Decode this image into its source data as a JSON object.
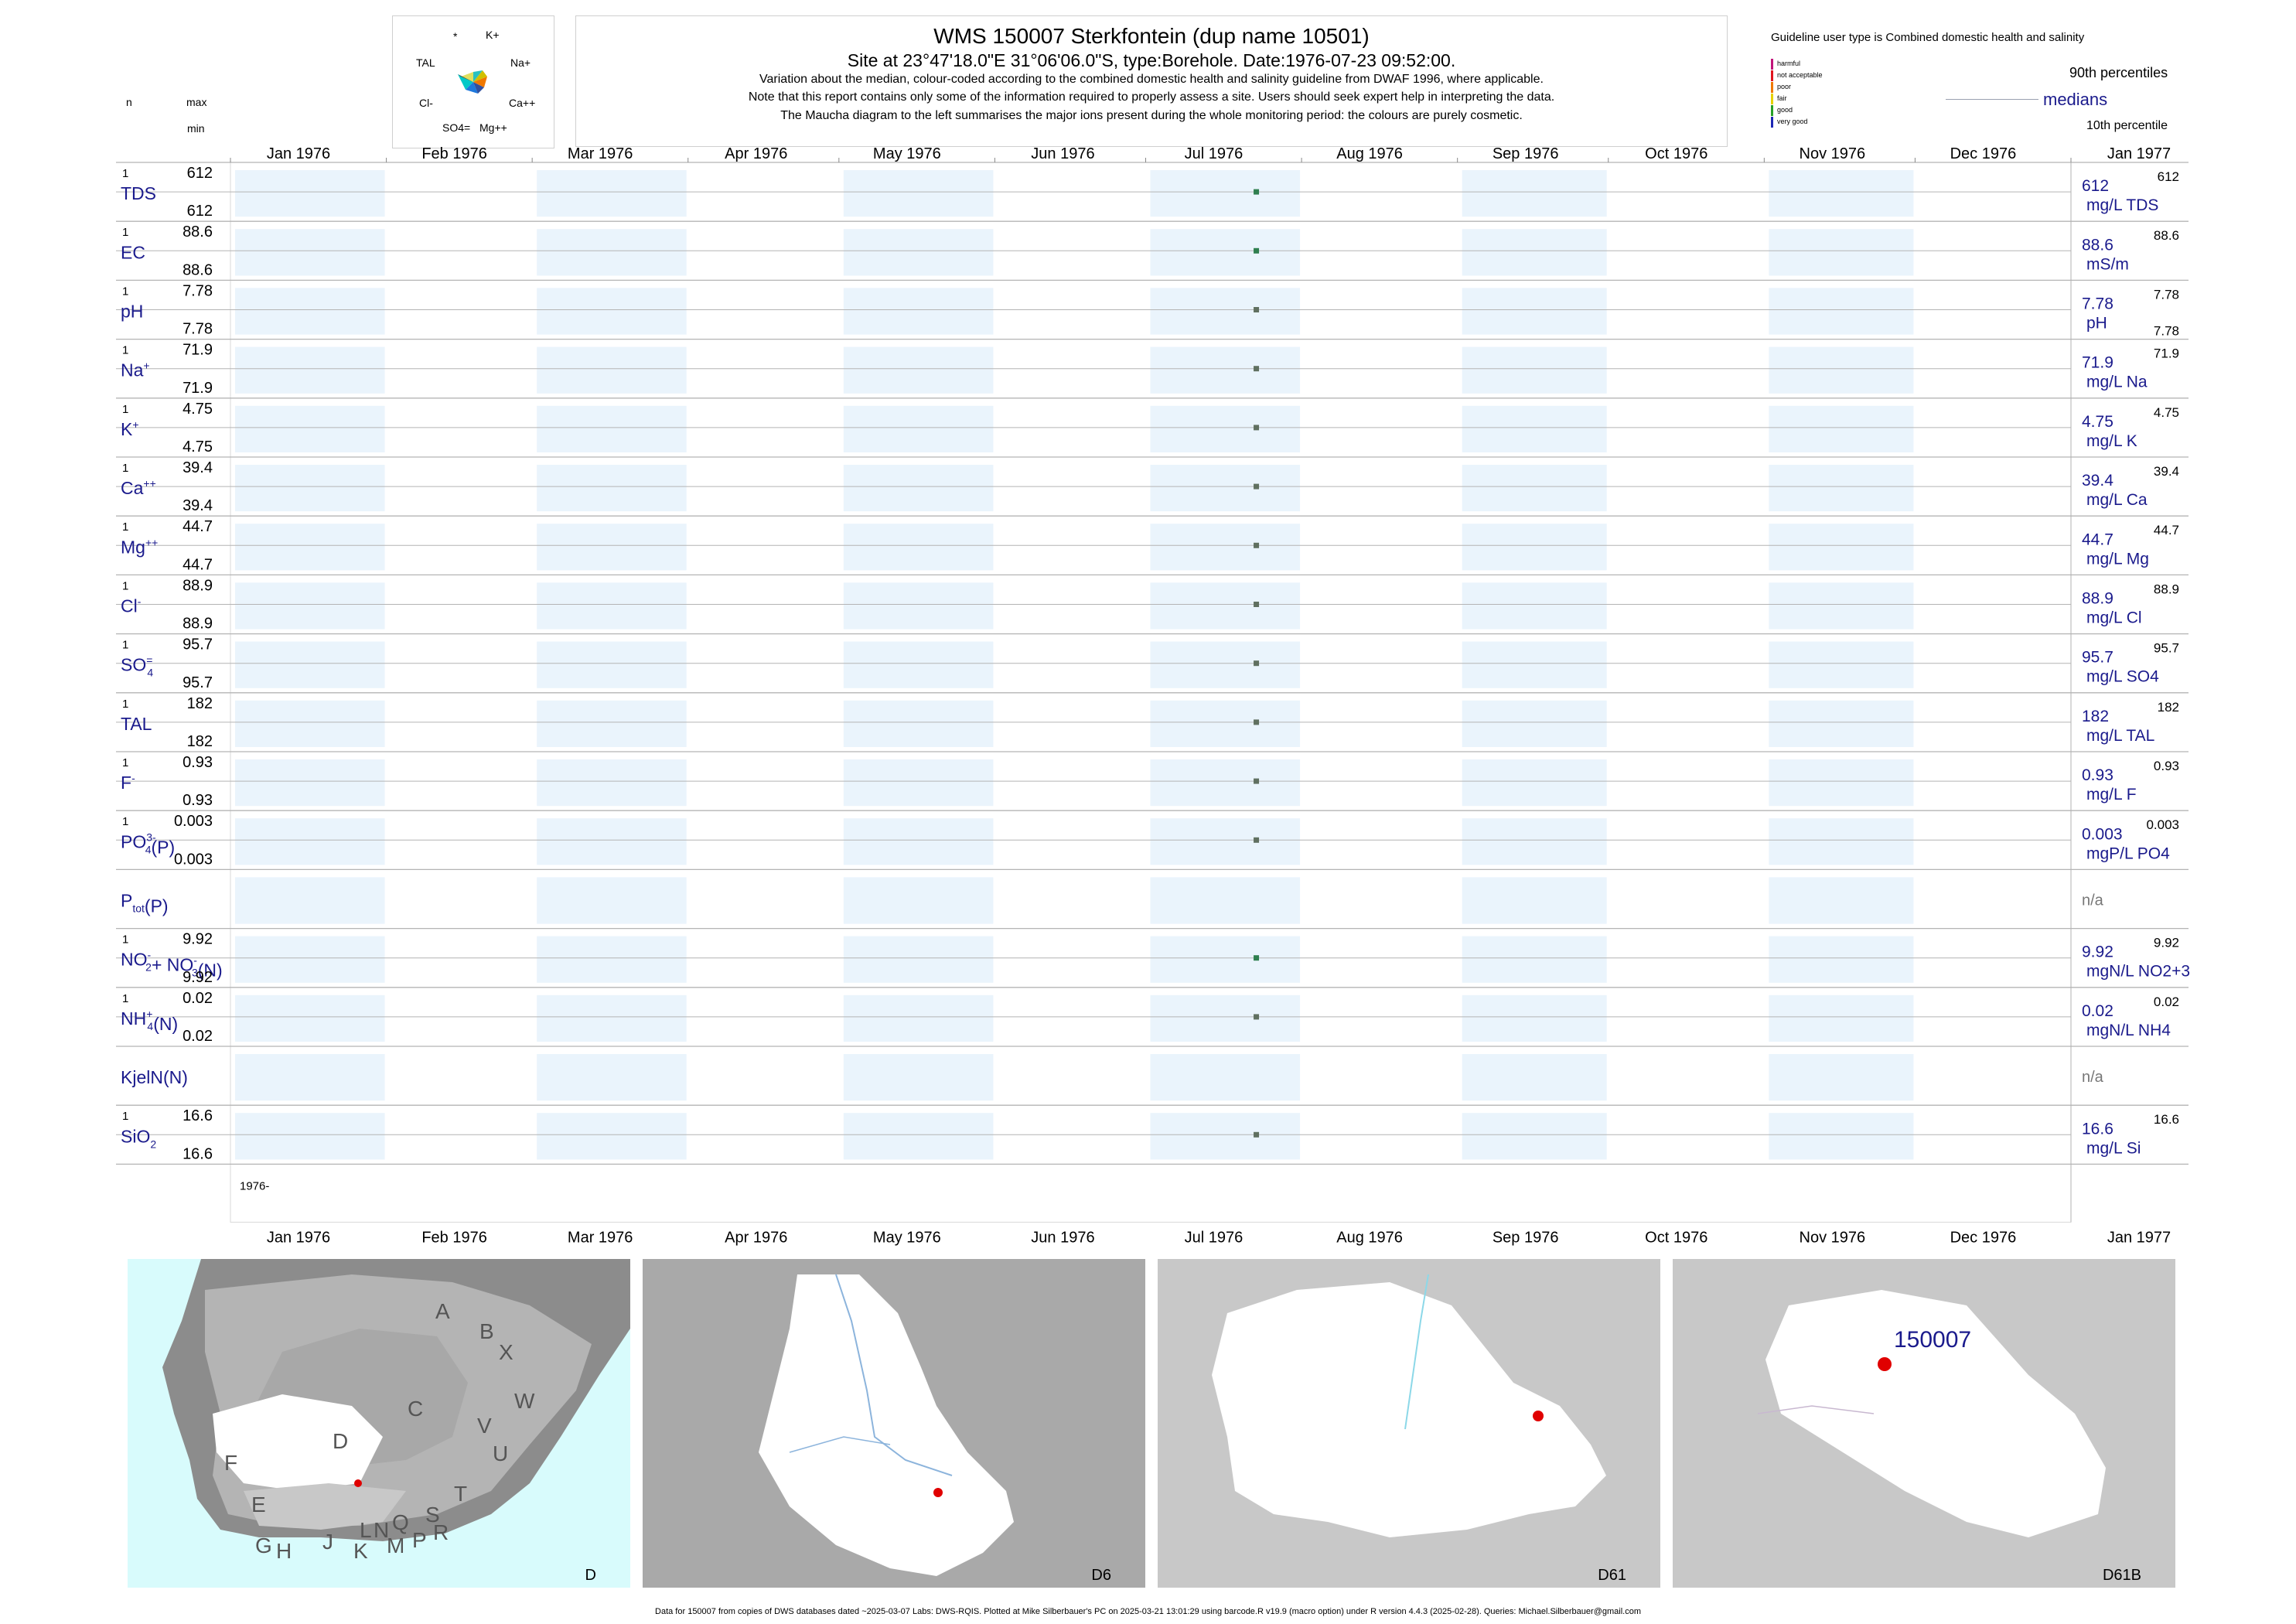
{
  "header": {
    "title": "WMS 150007  Sterkfontein (dup name 10501)",
    "subtitle": "Site at 23°47'18.0\"E 31°06'06.0\"S, type:Borehole. Date:1976-07-23 09:52:00.",
    "note1": "Variation about the median,  colour-coded according to the combined domestic health and salinity guideline from DWAF 1996, where applicable.",
    "note2": "Note that this report contains only some of the information required to properly assess a site. Users should seek expert help in interpreting the data.",
    "note3": "The Maucha diagram to the left summarises the major ions present during the whole monitoring period: the colours are purely cosmetic."
  },
  "column_heads": {
    "n": "n",
    "max": "max",
    "min": "min"
  },
  "maucha": {
    "labels": [
      "*",
      "K+",
      "Na+",
      "Ca++",
      "Mg++",
      "SO4=",
      "Cl-",
      "TAL"
    ]
  },
  "guideline": {
    "title": "Guideline user type is Combined domestic health and salinity",
    "classes": [
      {
        "label": "harmful",
        "color": "#c0147a"
      },
      {
        "label": "not acceptable",
        "color": "#e0141e"
      },
      {
        "label": "poor",
        "color": "#f07800"
      },
      {
        "label": "fair",
        "color": "#e6d200"
      },
      {
        "label": "good",
        "color": "#28a028"
      },
      {
        "label": "very good",
        "color": "#1e28b4"
      }
    ],
    "p90": "90th percentiles",
    "medians": "medians",
    "p10": "10th percentile"
  },
  "chart_data": {
    "type": "scatter",
    "x_ticks": [
      "Jan 1976",
      "Feb 1976",
      "Mar 1976",
      "Apr 1976",
      "May 1976",
      "Jun 1976",
      "Jul 1976",
      "Aug 1976",
      "Sep 1976",
      "Oct 1976",
      "Nov 1976",
      "Dec 1976",
      "Jan 1977"
    ],
    "x_range": [
      "1976-01-01",
      "1977-01-01"
    ],
    "sample_date": "1976-07-23",
    "year_label": "1976-",
    "rows": [
      {
        "label": "TDS",
        "sup": "",
        "sub": "",
        "n": "1",
        "max": "612",
        "min": "612",
        "median": "612",
        "unit": "mg/L TDS",
        "p90": "612",
        "p10": "",
        "color": "#2f7f4f"
      },
      {
        "label": "EC",
        "sup": "",
        "sub": "",
        "n": "1",
        "max": "88.6",
        "min": "88.6",
        "median": "88.6",
        "unit": "mS/m",
        "p90": "88.6",
        "p10": "",
        "color": "#2f7f4f"
      },
      {
        "label": "pH",
        "sup": "",
        "sub": "",
        "n": "1",
        "max": "7.78",
        "min": "7.78",
        "median": "7.78",
        "unit": "pH",
        "p90": "7.78",
        "p10": "7.78",
        "color": "#607060"
      },
      {
        "label": "Na",
        "sup": "+",
        "sub": "",
        "n": "1",
        "max": "71.9",
        "min": "71.9",
        "median": "71.9",
        "unit": "mg/L Na",
        "p90": "71.9",
        "p10": "",
        "color": "#607060"
      },
      {
        "label": "K",
        "sup": "+",
        "sub": "",
        "n": "1",
        "max": "4.75",
        "min": "4.75",
        "median": "4.75",
        "unit": "mg/L K",
        "p90": "4.75",
        "p10": "",
        "color": "#607060"
      },
      {
        "label": "Ca",
        "sup": "++",
        "sub": "",
        "n": "1",
        "max": "39.4",
        "min": "39.4",
        "median": "39.4",
        "unit": "mg/L Ca",
        "p90": "39.4",
        "p10": "",
        "color": "#607060"
      },
      {
        "label": "Mg",
        "sup": "++",
        "sub": "",
        "n": "1",
        "max": "44.7",
        "min": "44.7",
        "median": "44.7",
        "unit": "mg/L Mg",
        "p90": "44.7",
        "p10": "",
        "color": "#607060"
      },
      {
        "label": "Cl",
        "sup": "-",
        "sub": "",
        "n": "1",
        "max": "88.9",
        "min": "88.9",
        "median": "88.9",
        "unit": "mg/L Cl",
        "p90": "88.9",
        "p10": "",
        "color": "#607060"
      },
      {
        "label": "SO",
        "sup": "=",
        "sub": "4",
        "n": "1",
        "max": "95.7",
        "min": "95.7",
        "median": "95.7",
        "unit": "mg/L SO4",
        "p90": "95.7",
        "p10": "",
        "color": "#607060"
      },
      {
        "label": "TAL",
        "sup": "",
        "sub": "",
        "n": "1",
        "max": "182",
        "min": "182",
        "median": "182",
        "unit": "mg/L TAL",
        "p90": "182",
        "p10": "",
        "color": "#607060"
      },
      {
        "label": "F",
        "sup": "-",
        "sub": "",
        "n": "1",
        "max": "0.93",
        "min": "0.93",
        "median": "0.93",
        "unit": "mg/L F",
        "p90": "0.93",
        "p10": "",
        "color": "#607060"
      },
      {
        "label": "PO",
        "sup": "3-",
        "sub": "4",
        "tail": "(P)",
        "n": "1",
        "max": "0.003",
        "min": "0.003",
        "median": "0.003",
        "unit": "mgP/L PO4",
        "p90": "0.003",
        "p10": "",
        "color": "#607060"
      },
      {
        "label": "P",
        "sup": "",
        "sub": "tot",
        "tail": "(P)",
        "n": "",
        "max": "",
        "min": "",
        "median": "n/a",
        "unit": "",
        "p90": "",
        "p10": "",
        "color": ""
      },
      {
        "label": "NO",
        "sup": "-",
        "sub": "2",
        "tail": "+ NO",
        "tail_sup": "-",
        "tail_sub": "3",
        "tail2": "(N)",
        "n": "1",
        "max": "9.92",
        "min": "9.92",
        "median": "9.92",
        "unit": "mgN/L NO2+3",
        "p90": "9.92",
        "p10": "",
        "color": "#2f7f4f"
      },
      {
        "label": "NH",
        "sup": "+",
        "sub": "4",
        "tail": "(N)",
        "n": "1",
        "max": "0.02",
        "min": "0.02",
        "median": "0.02",
        "unit": "mgN/L NH4",
        "p90": "0.02",
        "p10": "",
        "color": "#607060"
      },
      {
        "label": "KjelN(N)",
        "sup": "",
        "sub": "",
        "n": "",
        "max": "",
        "min": "",
        "median": "n/a",
        "unit": "",
        "p90": "",
        "p10": "",
        "color": ""
      },
      {
        "label": "SiO",
        "sup": "",
        "sub": "2",
        "n": "1",
        "max": "16.6",
        "min": "16.6",
        "median": "16.6",
        "unit": "mg/L Si",
        "p90": "16.6",
        "p10": "",
        "color": "#607060"
      }
    ]
  },
  "maps": [
    {
      "label": "D",
      "letters": [
        "A",
        "B",
        "X",
        "W",
        "C",
        "V",
        "U",
        "D",
        "F",
        "E",
        "T",
        "S",
        "R",
        "Q",
        "N",
        "L",
        "P",
        "M",
        "K",
        "J",
        "H",
        "G"
      ]
    },
    {
      "label": "D6"
    },
    {
      "label": "D61"
    },
    {
      "label": "D61B",
      "site": "150007"
    }
  ],
  "footer": "Data for 150007 from copies of DWS databases dated ~2025-03-07 Labs: DWS-RQIS. Plotted at Mike Silberbauer's PC on 2025-03-21 13:01:29 using barcode.R v19.9 (macro option) under R version 4.4.3 (2025-02-28). Queries: Michael.Silberbauer@gmail.com"
}
